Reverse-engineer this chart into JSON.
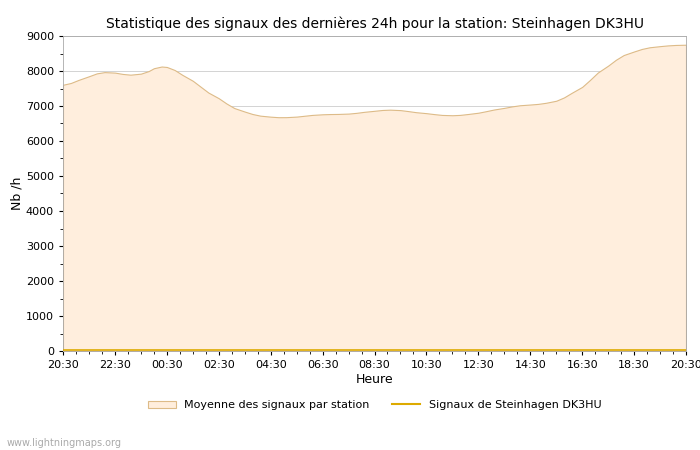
{
  "title": "Statistique des signaux des dernières 24h pour la station: Steinhagen DK3HU",
  "xlabel": "Heure",
  "ylabel": "Nb /h",
  "xlim": [
    0,
    24
  ],
  "ylim": [
    0,
    9000
  ],
  "yticks": [
    0,
    1000,
    2000,
    3000,
    4000,
    5000,
    6000,
    7000,
    8000,
    9000
  ],
  "xtick_labels": [
    "20:30",
    "22:30",
    "00:30",
    "02:30",
    "04:30",
    "06:30",
    "08:30",
    "10:30",
    "12:30",
    "14:30",
    "16:30",
    "18:30",
    "20:30"
  ],
  "watermark": "www.lightningmaps.org",
  "legend_fill_label": "Moyenne des signaux par station",
  "legend_line_label": "Signaux de Steinhagen DK3HU",
  "fill_color": "#FFEEDD",
  "fill_edge_color": "#DDBB88",
  "line_color": "#DDAA00",
  "background_color": "#FFFFFF",
  "area_x": [
    0,
    0.3,
    0.6,
    1.0,
    1.3,
    1.6,
    2.0,
    2.3,
    2.6,
    3.0,
    3.3,
    3.5,
    3.8,
    4.0,
    4.3,
    4.6,
    5.0,
    5.3,
    5.6,
    6.0,
    6.3,
    6.6,
    7.0,
    7.3,
    7.6,
    8.0,
    8.3,
    8.6,
    9.0,
    9.3,
    9.6,
    10.0,
    10.3,
    10.6,
    11.0,
    11.3,
    11.6,
    12.0,
    12.3,
    12.6,
    13.0,
    13.3,
    13.6,
    14.0,
    14.3,
    14.6,
    15.0,
    15.3,
    15.6,
    16.0,
    16.3,
    16.6,
    17.0,
    17.3,
    17.6,
    18.0,
    18.3,
    18.6,
    19.0,
    19.3,
    19.6,
    20.0,
    20.3,
    20.6,
    21.0,
    21.3,
    21.6,
    22.0,
    22.3,
    22.6,
    23.0,
    23.3,
    23.6,
    24.0
  ],
  "area_y": [
    7550,
    7600,
    7700,
    7900,
    8000,
    8050,
    8000,
    7900,
    7800,
    7800,
    8050,
    8100,
    8200,
    8250,
    8100,
    7900,
    7700,
    7550,
    7400,
    7200,
    7050,
    6900,
    6800,
    6750,
    6700,
    6700,
    6650,
    6650,
    6700,
    6720,
    6750,
    6780,
    6800,
    6750,
    6750,
    6800,
    6850,
    6850,
    6900,
    6950,
    6900,
    6850,
    6800,
    6800,
    6800,
    6700,
    6700,
    6750,
    6750,
    6800,
    6850,
    6900,
    6950,
    7000,
    7050,
    7050,
    7050,
    7050,
    7100,
    7200,
    7350,
    7500,
    7700,
    8000,
    8200,
    8350,
    8500,
    8600,
    8650,
    8700,
    8720,
    8740,
    8750,
    8760
  ],
  "line_x": [
    0,
    24
  ],
  "line_y": [
    30,
    30
  ]
}
